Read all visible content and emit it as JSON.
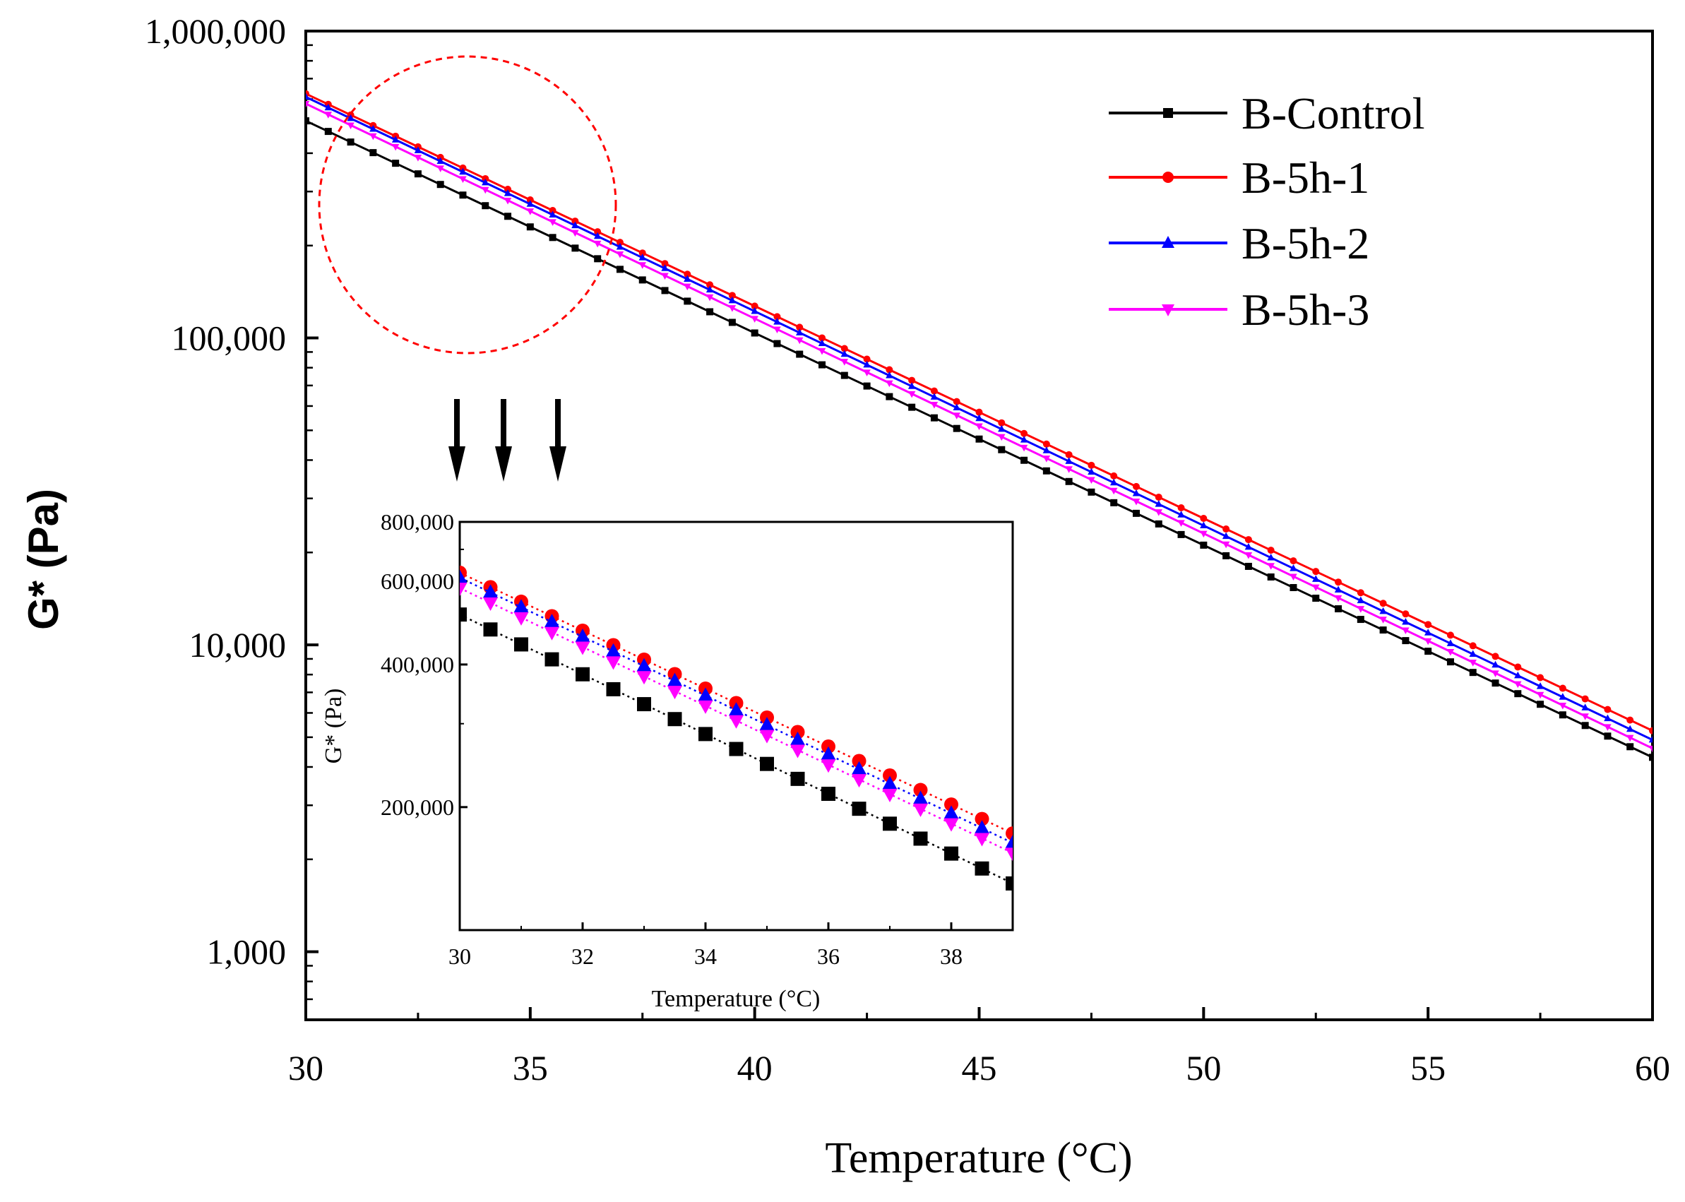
{
  "chart_data": [
    {
      "name": "main",
      "type": "line",
      "title": "",
      "xlabel": "Temperature (°C)",
      "ylabel": "G* (Pa)",
      "xlim": [
        30,
        60
      ],
      "ylim": [
        600,
        1000000
      ],
      "yscale": "log",
      "x_ticks": [
        30,
        35,
        40,
        45,
        50,
        55,
        60
      ],
      "x_tick_labels": [
        "30",
        "35",
        "40",
        "45",
        "50",
        "55",
        "60"
      ],
      "y_ticks": [
        1000,
        10000,
        100000,
        1000000
      ],
      "y_tick_labels": [
        "1,000",
        "10,000",
        "100,000",
        "1,000,000"
      ],
      "x_start": 30,
      "x_step": 0.5,
      "legend_position": "top-right",
      "series": [
        {
          "name": "B-Control",
          "color": "#000000",
          "marker": "square",
          "y_at_start": 510000,
          "y_at_end": 4300
        },
        {
          "name": "B-5h-1",
          "color": "#ff0000",
          "marker": "circle",
          "y_at_start": 625000,
          "y_at_end": 5250
        },
        {
          "name": "B-5h-2",
          "color": "#0000ff",
          "marker": "triangle-up",
          "y_at_start": 610000,
          "y_at_end": 4900
        },
        {
          "name": "B-5h-3",
          "color": "#ff00ff",
          "marker": "triangle-down",
          "y_at_start": 580000,
          "y_at_end": 4600
        }
      ],
      "annotation": {
        "type": "dashed-circle",
        "color": "#ff0000",
        "region": "x 30-37"
      },
      "arrow_count": 3
    },
    {
      "name": "inset",
      "type": "scatter",
      "title": "",
      "xlabel": "Temperature (°C)",
      "ylabel": "G* (Pa)",
      "xlim": [
        30,
        39
      ],
      "ylim": [
        110000,
        800000
      ],
      "yscale": "log",
      "x_ticks": [
        30,
        32,
        34,
        36,
        38
      ],
      "x_tick_labels": [
        "30",
        "32",
        "34",
        "36",
        "38"
      ],
      "y_ticks": [
        200000,
        400000,
        600000,
        800000
      ],
      "y_tick_labels": [
        "200,000",
        "400,000",
        "600,000",
        "800,000"
      ],
      "x_start": 30,
      "x_step": 0.5,
      "fit_lines": "dotted",
      "series": [
        {
          "name": "B-Control",
          "color": "#000000",
          "marker": "square",
          "y_at_start": 510000,
          "y_at_end": 138000
        },
        {
          "name": "B-5h-1",
          "color": "#ff0000",
          "marker": "circle",
          "y_at_start": 625000,
          "y_at_end": 176000
        },
        {
          "name": "B-5h-2",
          "color": "#0000ff",
          "marker": "triangle-up",
          "y_at_start": 610000,
          "y_at_end": 168000
        },
        {
          "name": "B-5h-3",
          "color": "#ff00ff",
          "marker": "triangle-down",
          "y_at_start": 580000,
          "y_at_end": 160000
        }
      ]
    }
  ]
}
